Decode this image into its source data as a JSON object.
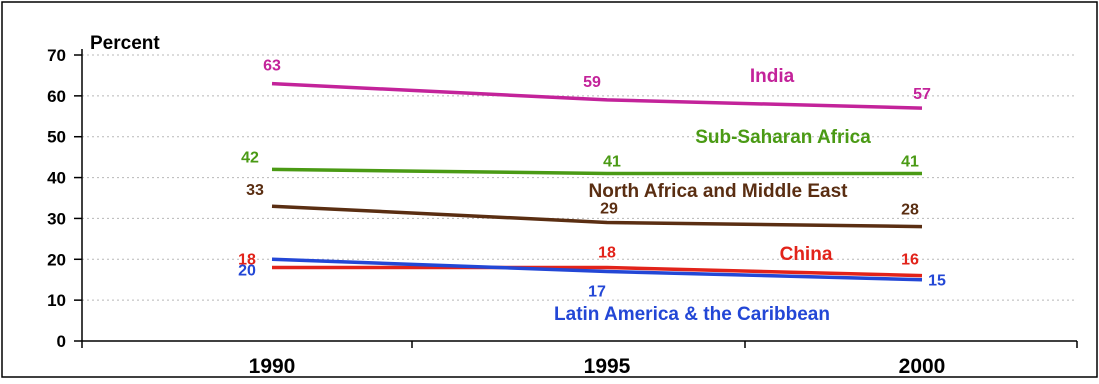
{
  "chart_data": {
    "type": "line",
    "ylabel": "Percent",
    "xlabel": "",
    "ylim": [
      0,
      70
    ],
    "yticks": [
      "0",
      "10",
      "20",
      "30",
      "40",
      "50",
      "60",
      "70"
    ],
    "x": [
      "1990",
      "1995",
      "2000"
    ],
    "grid": true,
    "series": [
      {
        "name": "India",
        "values": [
          63,
          59,
          57
        ],
        "labels": [
          "63",
          "59",
          "57"
        ],
        "color": "#c3239a"
      },
      {
        "name": "Sub-Saharan Africa",
        "values": [
          42,
          41,
          41
        ],
        "labels": [
          "42",
          "41",
          "41"
        ],
        "color": "#4a9a14"
      },
      {
        "name": "North Africa and Middle East",
        "values": [
          33,
          29,
          28
        ],
        "labels": [
          "33",
          "29",
          "28"
        ],
        "color": "#5a2e12"
      },
      {
        "name": "China",
        "values": [
          18,
          18,
          16
        ],
        "labels": [
          "18",
          "18",
          "16"
        ],
        "color": "#e2231a"
      },
      {
        "name": "Latin America & the Caribbean",
        "values": [
          20,
          17,
          15
        ],
        "labels": [
          "20",
          "17",
          "15"
        ],
        "color": "#2347d6"
      }
    ]
  }
}
